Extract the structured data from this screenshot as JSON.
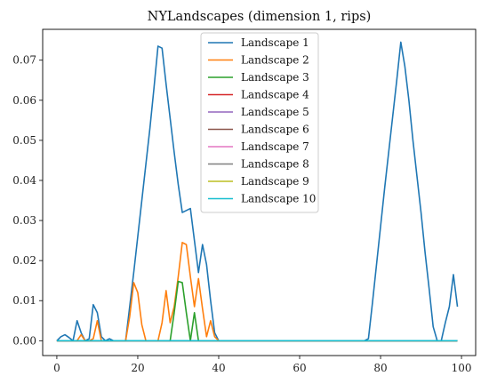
{
  "chart_data": {
    "type": "line",
    "title": "NYLandscapes (dimension 1, rips)",
    "xlabel": "",
    "ylabel": "",
    "xlim": [
      -3.5,
      103.5
    ],
    "ylim": [
      -0.0037,
      0.0777
    ],
    "xticks": [
      0,
      20,
      40,
      60,
      80,
      100
    ],
    "yticks": [
      0.0,
      0.01,
      0.02,
      0.03,
      0.04,
      0.05,
      0.06,
      0.07
    ],
    "xtick_labels": [
      "0",
      "20",
      "40",
      "60",
      "80",
      "100"
    ],
    "ytick_labels": [
      "0.00",
      "0.01",
      "0.02",
      "0.03",
      "0.04",
      "0.05",
      "0.06",
      "0.07"
    ],
    "grid": false,
    "legend_position": "top-center",
    "series": [
      {
        "name": "Landscape 1",
        "color": "#1f77b4",
        "x": [
          0,
          1,
          2,
          3,
          4,
          5,
          6,
          7,
          8,
          9,
          10,
          11,
          12,
          13,
          14,
          15,
          16,
          17,
          18,
          19,
          20,
          21,
          22,
          23,
          24,
          25,
          26,
          27,
          28,
          29,
          30,
          31,
          32,
          33,
          34,
          35,
          36,
          37,
          38,
          39,
          40,
          76,
          77,
          78,
          79,
          80,
          81,
          82,
          83,
          84,
          85,
          86,
          87,
          88,
          89,
          90,
          91,
          92,
          93,
          94,
          95,
          96,
          97,
          98,
          99
        ],
        "y": [
          0.0,
          0.001,
          0.0015,
          0.0008,
          0.0,
          0.005,
          0.002,
          0.0,
          0.0005,
          0.009,
          0.007,
          0.001,
          0.0,
          0.0005,
          0.0,
          0.0,
          0.0,
          0.0,
          0.0085,
          0.017,
          0.026,
          0.035,
          0.044,
          0.053,
          0.063,
          0.0735,
          0.073,
          0.064,
          0.0555,
          0.047,
          0.039,
          0.032,
          0.0325,
          0.033,
          0.025,
          0.017,
          0.024,
          0.019,
          0.01,
          0.002,
          0.0,
          0.0,
          0.0005,
          0.0095,
          0.019,
          0.0285,
          0.038,
          0.047,
          0.056,
          0.065,
          0.0745,
          0.0685,
          0.06,
          0.05,
          0.041,
          0.032,
          0.022,
          0.013,
          0.0035,
          0.0,
          0.0,
          0.0045,
          0.0085,
          0.0165,
          0.0085
        ]
      },
      {
        "name": "Landscape 2",
        "color": "#ff7f0e",
        "x": [
          0,
          5,
          6,
          7,
          8,
          9,
          10,
          11,
          12,
          16,
          17,
          18,
          19,
          20,
          21,
          22,
          23,
          24,
          25,
          26,
          27,
          28,
          29,
          30,
          31,
          32,
          33,
          34,
          35,
          36,
          37,
          38,
          39,
          40,
          99
        ],
        "y": [
          0.0,
          0.0,
          0.0015,
          0.0,
          0.0,
          0.0005,
          0.005,
          0.0,
          0.0,
          0.0,
          0.0,
          0.006,
          0.0145,
          0.012,
          0.004,
          0.0,
          0.0,
          0.0,
          0.0,
          0.0045,
          0.0125,
          0.0045,
          0.0085,
          0.016,
          0.0245,
          0.024,
          0.016,
          0.0085,
          0.0155,
          0.008,
          0.001,
          0.005,
          0.001,
          0.0,
          0.0
        ]
      },
      {
        "name": "Landscape 3",
        "color": "#2ca02c",
        "x": [
          0,
          28,
          29,
          30,
          31,
          32,
          33,
          34,
          35,
          36,
          99
        ],
        "y": [
          0.0,
          0.0,
          0.007,
          0.0148,
          0.0145,
          0.007,
          0.0,
          0.007,
          0.0,
          0.0,
          0.0
        ]
      },
      {
        "name": "Landscape 4",
        "color": "#d62728",
        "x": [
          0,
          99
        ],
        "y": [
          0.0,
          0.0
        ]
      },
      {
        "name": "Landscape 5",
        "color": "#9467bd",
        "x": [
          0,
          99
        ],
        "y": [
          0.0,
          0.0
        ]
      },
      {
        "name": "Landscape 6",
        "color": "#8c564b",
        "x": [
          0,
          99
        ],
        "y": [
          0.0,
          0.0
        ]
      },
      {
        "name": "Landscape 7",
        "color": "#e377c2",
        "x": [
          0,
          99
        ],
        "y": [
          0.0,
          0.0
        ]
      },
      {
        "name": "Landscape 8",
        "color": "#7f7f7f",
        "x": [
          0,
          99
        ],
        "y": [
          0.0,
          0.0
        ]
      },
      {
        "name": "Landscape 9",
        "color": "#bcbd22",
        "x": [
          0,
          99
        ],
        "y": [
          0.0,
          0.0
        ]
      },
      {
        "name": "Landscape 10",
        "color": "#17becf",
        "x": [
          0,
          99
        ],
        "y": [
          0.0,
          0.0
        ]
      }
    ]
  }
}
